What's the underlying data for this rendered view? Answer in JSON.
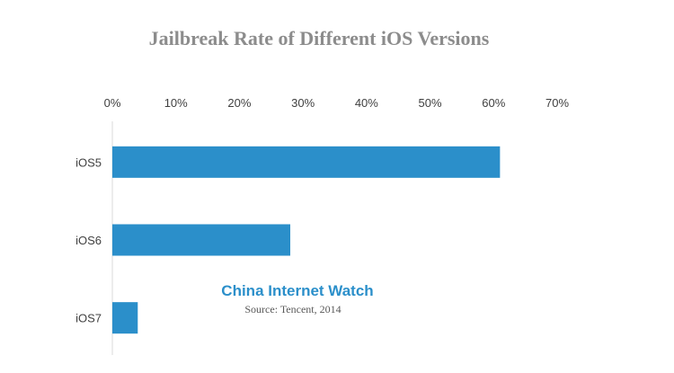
{
  "chart_data": {
    "type": "bar",
    "orientation": "horizontal",
    "title": "Jailbreak Rate of Different iOS Versions",
    "categories": [
      "iOS5",
      "iOS6",
      "iOS7"
    ],
    "values": [
      0.61,
      0.28,
      0.04
    ],
    "xlim": [
      0,
      0.7
    ],
    "x_ticks": [
      "0%",
      "10%",
      "20%",
      "30%",
      "40%",
      "50%",
      "60%",
      "70%"
    ],
    "x_axis_position": "top",
    "grid": false,
    "legend": "none",
    "bar_color": "#2b8fca",
    "axis_color": "#d9d9d9"
  },
  "watermark": {
    "name": "China Internet  Watch",
    "source": "Source: Tencent, 2014",
    "color": "#2b8fca"
  }
}
